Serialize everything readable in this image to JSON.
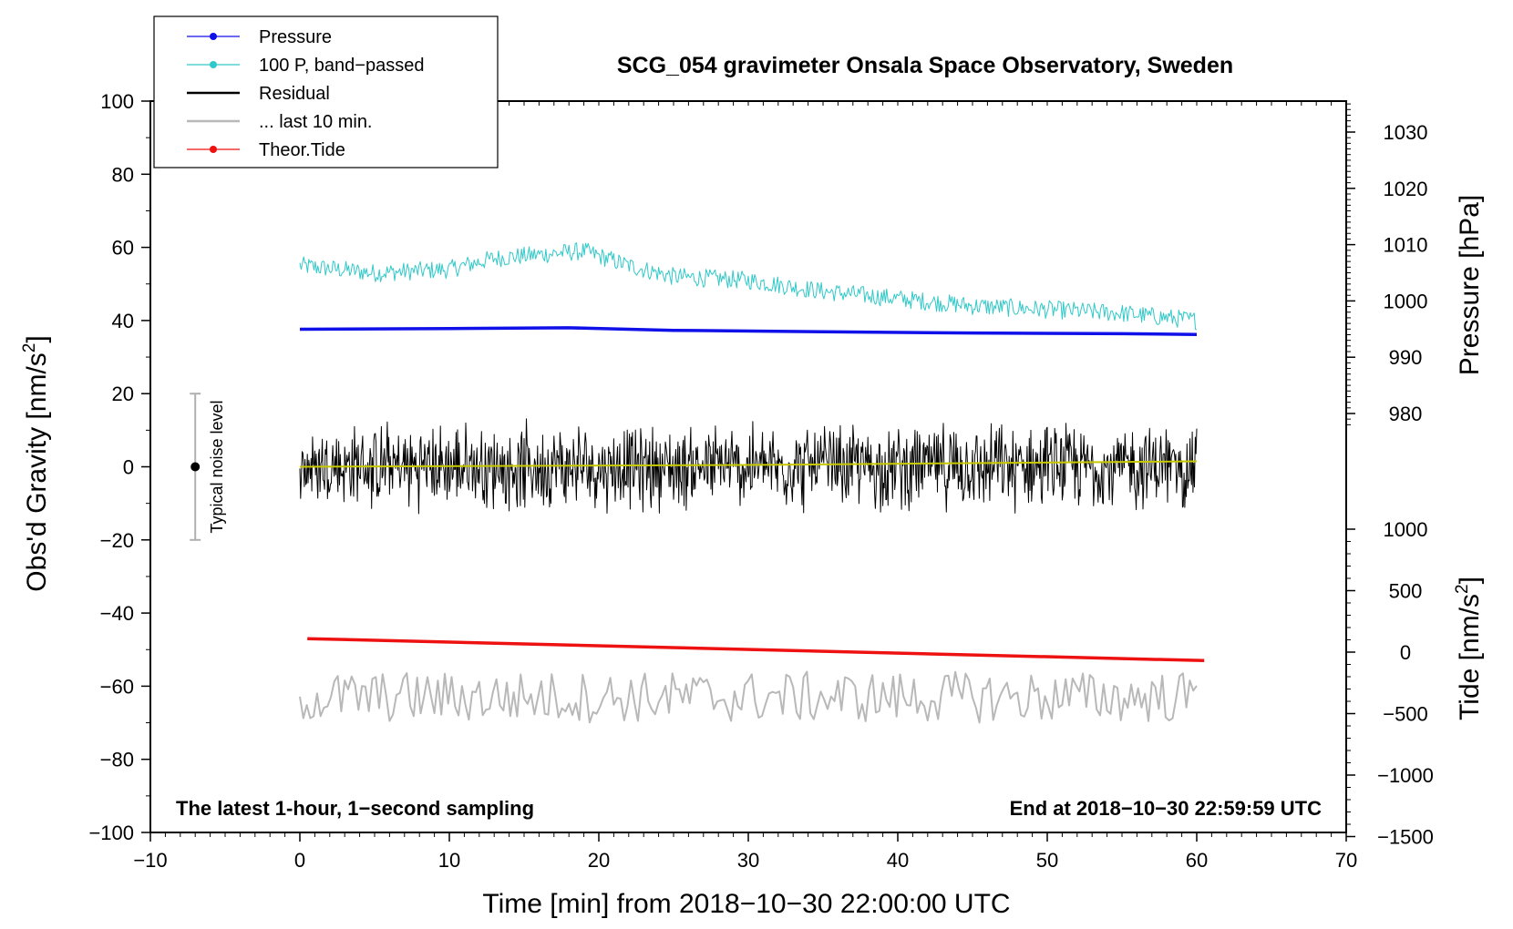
{
  "chart_data": {
    "type": "line",
    "title": "SCG_054 gravimeter Onsala Space Observatory, Sweden",
    "xlabel": "Time [min] from 2018−10−30 22:00:00 UTC",
    "ylabel_left": "Obs'd Gravity [nm/s",
    "ylabel_left_sup": "2",
    "ylabel_left_close": "]",
    "ylabel_right_pressure": "Pressure [hPa]",
    "ylabel_right_tide": "Tide [nm/s",
    "ylabel_right_tide_sup": "2",
    "ylabel_right_tide_close": "]",
    "xlim": [
      -10,
      70
    ],
    "ylim": [
      -100,
      100
    ],
    "x_ticks": [
      "−10",
      "0",
      "10",
      "20",
      "30",
      "40",
      "50",
      "60",
      "70"
    ],
    "y_ticks": [
      "100",
      "80",
      "60",
      "40",
      "20",
      "0",
      "−20",
      "−40",
      "−60",
      "−80",
      "−100"
    ],
    "pressure_axis": {
      "ticks": [
        "1030",
        "1020",
        "1010",
        "1000",
        "990",
        "980"
      ]
    },
    "tide_axis": {
      "ticks": [
        "1000",
        "500",
        "0",
        "−500",
        "−1000",
        "−1500"
      ]
    },
    "noise_bar": {
      "label": "Typical noise level",
      "x": -7,
      "center": 0,
      "half_range": 20
    },
    "note_left": "The latest 1-hour, 1−second sampling",
    "note_right": "End at 2018−10−30 22:59:59 UTC",
    "legend": [
      {
        "label": "Pressure",
        "color": "#1010e8",
        "style": "line-dot"
      },
      {
        "label": "100 P, band−passed",
        "color": "#30c8c8",
        "style": "line-dot"
      },
      {
        "label": "Residual",
        "color": "#000000",
        "style": "line"
      },
      {
        "label": "... last 10 min.",
        "color": "#b8b8b8",
        "style": "line"
      },
      {
        "label": "Theor.Tide",
        "color": "#ee1111",
        "style": "line-dot"
      }
    ],
    "series": [
      {
        "name": "Pressure",
        "color": "#1010e8",
        "axis": "left",
        "x": [
          0,
          10,
          18,
          25,
          35,
          45,
          55,
          60
        ],
        "y": [
          37.6,
          37.8,
          38.0,
          37.3,
          36.9,
          36.6,
          36.4,
          36.2
        ]
      },
      {
        "name": "100 P, band−passed",
        "color": "#30c8c8",
        "axis": "left",
        "x": [
          0,
          5,
          10,
          13,
          16,
          19,
          22,
          25,
          30,
          35,
          40,
          45,
          50,
          55,
          60
        ],
        "y": [
          55,
          53,
          54,
          57,
          58,
          59,
          55,
          52,
          51,
          48,
          46,
          44,
          43,
          42,
          40
        ],
        "noise_amplitude": 2.5
      },
      {
        "name": "Residual",
        "color": "#000000",
        "axis": "left",
        "x": [
          0,
          60
        ],
        "y": [
          0,
          0
        ],
        "noise_amplitude": 9
      },
      {
        "name": "Residual (smoothed)",
        "color": "#c8c800",
        "axis": "left",
        "x": [
          0,
          30,
          60
        ],
        "y": [
          0,
          0.5,
          1.5
        ]
      },
      {
        "name": "... last 10 min.",
        "color": "#b8b8b8",
        "axis": "left",
        "x": [
          0,
          60
        ],
        "y": [
          -63,
          -63
        ],
        "noise_amplitude": 7
      },
      {
        "name": "Theor.Tide",
        "color": "#ee1111",
        "axis": "left",
        "x": [
          0.5,
          60.5
        ],
        "y": [
          -47,
          -53
        ]
      }
    ]
  }
}
